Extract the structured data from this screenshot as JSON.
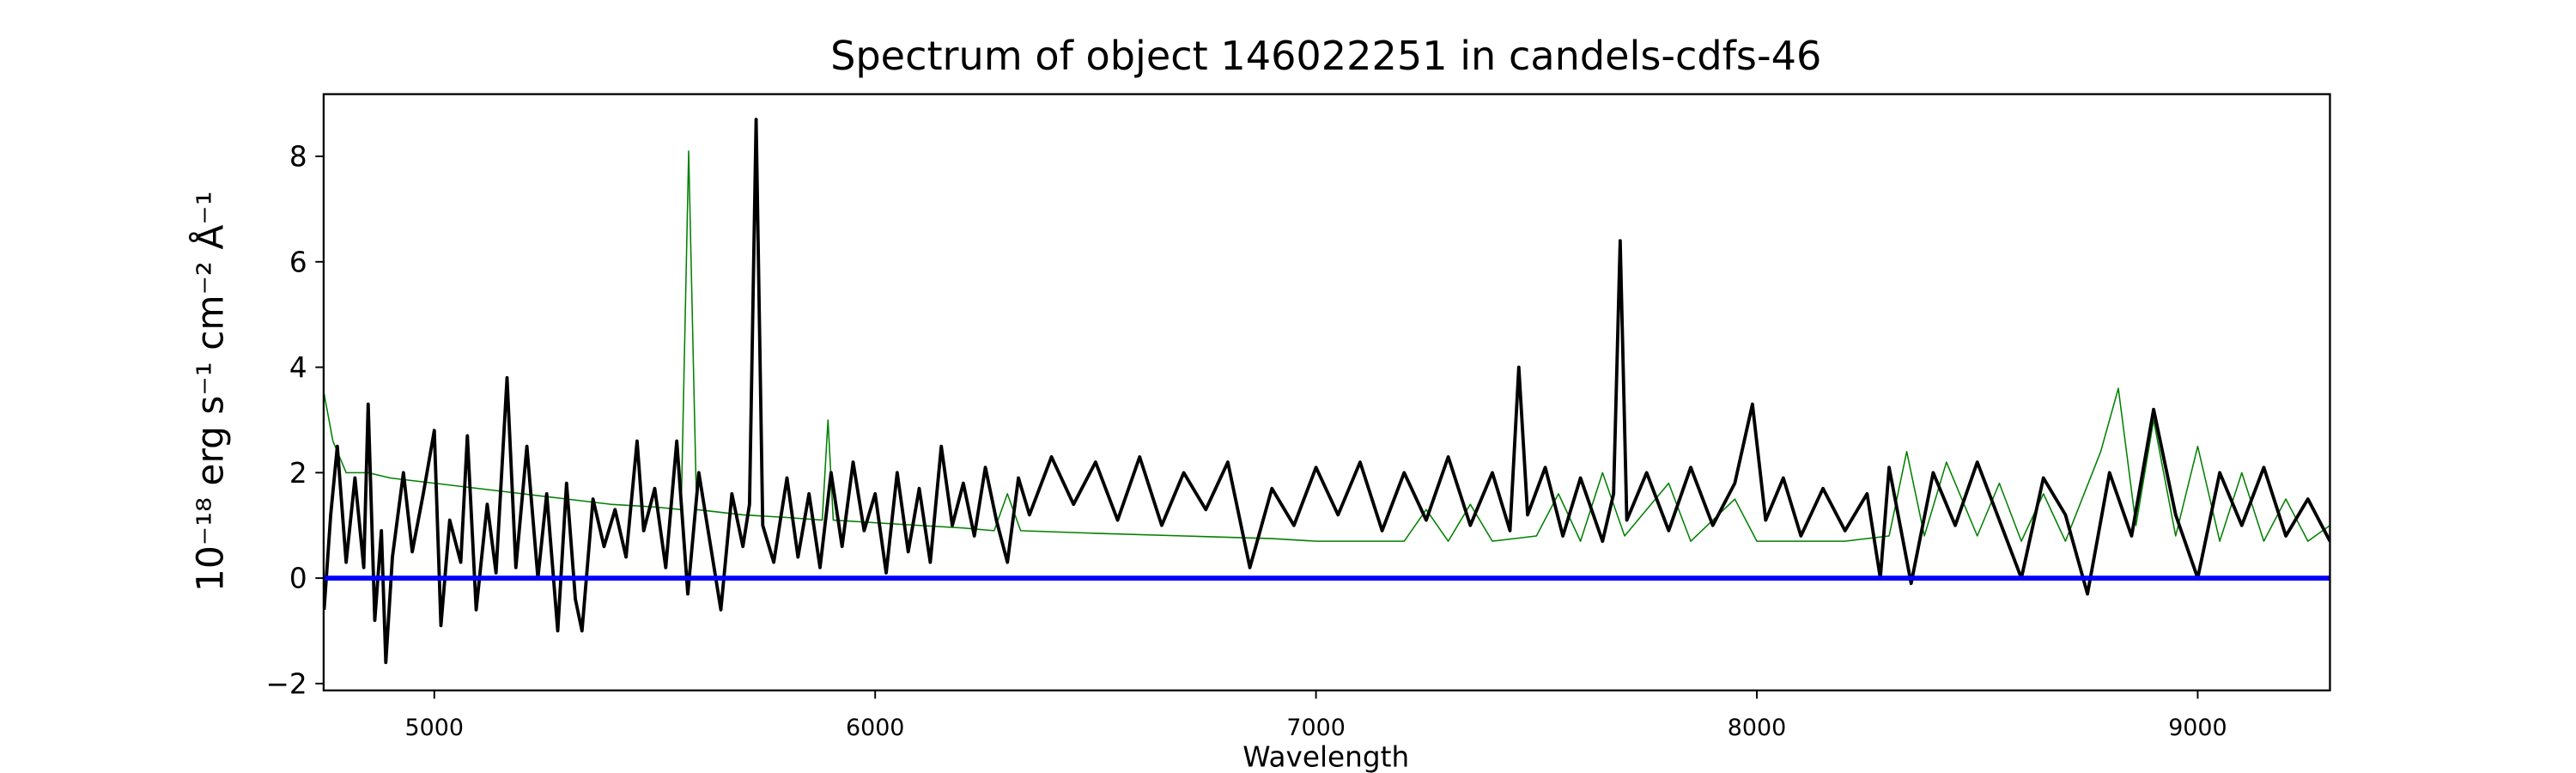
{
  "chart_data": {
    "type": "line",
    "title": "Spectrum of object 146022251 in candels-cdfs-46",
    "xlabel": "Wavelength",
    "ylabel": "10⁻¹⁸ erg s⁻¹ cm⁻² Å⁻¹",
    "xlim": [
      4749,
      9300
    ],
    "ylim": [
      -2.13,
      9.18
    ],
    "xticks": [
      5000,
      6000,
      7000,
      8000,
      9000
    ],
    "yticks": [
      {
        "value": -2,
        "label": "−2"
      },
      0,
      2,
      4,
      6,
      8
    ],
    "hline": {
      "value": 0,
      "color": "#0000ff"
    },
    "series": [
      {
        "color": "#008000",
        "width": 0.8,
        "x": [
          4750,
          4770,
          4800,
          4850,
          4900,
          5000,
          5100,
          5200,
          5300,
          5400,
          5500,
          5560,
          5577,
          5595,
          5700,
          5800,
          5880,
          5893,
          5905,
          6000,
          6100,
          6200,
          6270,
          6300,
          6330,
          6500,
          6700,
          6900,
          7000,
          7200,
          7250,
          7300,
          7350,
          7400,
          7500,
          7550,
          7600,
          7650,
          7700,
          7800,
          7850,
          7950,
          8000,
          8100,
          8200,
          8300,
          8340,
          8380,
          8430,
          8500,
          8550,
          8600,
          8650,
          8700,
          8780,
          8820,
          8860,
          8900,
          8950,
          9000,
          9050,
          9100,
          9150,
          9200,
          9250,
          9300
        ],
        "values": [
          3.5,
          2.6,
          2.0,
          2.0,
          1.9,
          1.8,
          1.7,
          1.6,
          1.5,
          1.4,
          1.35,
          1.3,
          8.1,
          1.3,
          1.2,
          1.15,
          1.1,
          3.0,
          1.1,
          1.05,
          1.0,
          0.95,
          0.9,
          1.6,
          0.9,
          0.85,
          0.8,
          0.75,
          0.7,
          0.7,
          1.3,
          0.7,
          1.4,
          0.7,
          0.8,
          1.6,
          0.7,
          2.0,
          0.8,
          1.8,
          0.7,
          1.5,
          0.7,
          0.7,
          0.7,
          0.8,
          2.4,
          0.8,
          2.2,
          0.8,
          1.8,
          0.7,
          1.6,
          0.7,
          2.4,
          3.6,
          1.0,
          3.0,
          0.8,
          2.5,
          0.7,
          2.0,
          0.7,
          1.5,
          0.7,
          1.0
        ]
      },
      {
        "color": "#000000",
        "width": 2,
        "x": [
          4750,
          4765,
          4780,
          4800,
          4820,
          4840,
          4850,
          4865,
          4880,
          4890,
          4905,
          4930,
          4950,
          4975,
          5000,
          5015,
          5035,
          5060,
          5075,
          5095,
          5120,
          5140,
          5165,
          5185,
          5210,
          5235,
          5255,
          5280,
          5300,
          5320,
          5335,
          5360,
          5385,
          5410,
          5435,
          5460,
          5475,
          5500,
          5525,
          5550,
          5575,
          5600,
          5625,
          5650,
          5675,
          5700,
          5715,
          5730,
          5745,
          5770,
          5800,
          5825,
          5850,
          5875,
          5900,
          5925,
          5950,
          5975,
          6000,
          6025,
          6050,
          6075,
          6100,
          6125,
          6150,
          6175,
          6200,
          6225,
          6250,
          6275,
          6300,
          6325,
          6350,
          6400,
          6450,
          6500,
          6550,
          6600,
          6650,
          6700,
          6750,
          6800,
          6850,
          6900,
          6950,
          7000,
          7050,
          7100,
          7150,
          7200,
          7250,
          7300,
          7350,
          7400,
          7440,
          7460,
          7480,
          7520,
          7560,
          7600,
          7650,
          7675,
          7690,
          7705,
          7750,
          7800,
          7850,
          7900,
          7950,
          7990,
          8020,
          8060,
          8100,
          8150,
          8200,
          8250,
          8280,
          8300,
          8350,
          8400,
          8450,
          8500,
          8550,
          8600,
          8650,
          8700,
          8750,
          8800,
          8850,
          8900,
          8950,
          9000,
          9050,
          9100,
          9150,
          9200,
          9250,
          9300
        ],
        "values": [
          -0.6,
          1.2,
          2.5,
          0.3,
          1.9,
          0.2,
          3.3,
          -0.8,
          0.9,
          -1.6,
          0.4,
          2.0,
          0.5,
          1.6,
          2.8,
          -0.9,
          1.1,
          0.3,
          2.7,
          -0.6,
          1.4,
          0.1,
          3.8,
          0.2,
          2.5,
          0.0,
          1.6,
          -1.0,
          1.8,
          -0.4,
          -1.0,
          1.5,
          0.6,
          1.3,
          0.4,
          2.6,
          0.9,
          1.7,
          0.2,
          2.6,
          -0.3,
          2.0,
          0.7,
          -0.6,
          1.6,
          0.6,
          1.4,
          8.7,
          1.0,
          0.3,
          1.9,
          0.4,
          1.6,
          0.2,
          2.0,
          0.6,
          2.2,
          0.9,
          1.6,
          0.1,
          2.0,
          0.5,
          1.7,
          0.3,
          2.5,
          1.0,
          1.8,
          0.8,
          2.1,
          1.1,
          0.3,
          1.9,
          1.2,
          2.3,
          1.4,
          2.2,
          1.1,
          2.3,
          1.0,
          2.0,
          1.3,
          2.2,
          0.2,
          1.7,
          1.0,
          2.1,
          1.2,
          2.2,
          0.9,
          2.0,
          1.1,
          2.3,
          1.0,
          2.0,
          0.9,
          4.0,
          1.2,
          2.1,
          0.8,
          1.9,
          0.7,
          1.6,
          6.4,
          1.1,
          2.0,
          0.9,
          2.1,
          1.0,
          1.8,
          3.3,
          1.1,
          1.9,
          0.8,
          1.7,
          0.9,
          1.6,
          0.0,
          2.1,
          -0.1,
          2.0,
          1.0,
          2.2,
          1.1,
          0.0,
          1.9,
          1.2,
          -0.3,
          2.0,
          0.8,
          3.2,
          1.2,
          0.0,
          2.0,
          1.0,
          2.1,
          0.8,
          1.5,
          0.7
        ]
      }
    ]
  }
}
